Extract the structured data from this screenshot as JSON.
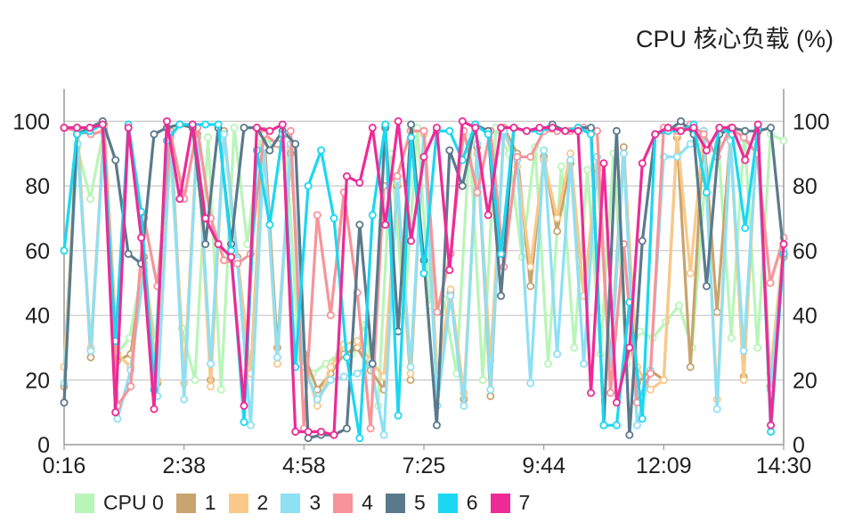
{
  "chart_data": {
    "type": "line",
    "title": "CPU 核心负载 (%)",
    "ylim": [
      0,
      110
    ],
    "y_ticks": [
      0,
      20,
      40,
      60,
      80,
      100
    ],
    "x_tick_labels": [
      "0:16",
      "2:38",
      "4:58",
      "7:25",
      "9:44",
      "12:09",
      "14:30"
    ],
    "grid": "horizontal",
    "legend": "bottom-left",
    "series": [
      {
        "name": "CPU 0",
        "color": "#b9f5b9",
        "values": [
          60,
          92,
          76,
          97,
          28,
          33,
          55,
          32,
          96,
          36,
          20,
          95,
          17,
          98,
          62,
          95,
          93,
          90,
          25,
          22,
          25,
          28,
          28,
          37,
          12,
          90,
          40,
          98,
          43,
          45,
          22,
          95,
          20,
          98,
          90,
          58,
          92,
          25,
          86,
          30,
          85,
          28,
          90,
          25,
          35,
          33,
          38,
          43,
          30,
          82,
          93,
          33,
          97,
          30,
          96,
          94
        ]
      },
      {
        "name": "1",
        "color": "#c8a46e",
        "values": [
          18,
          98,
          27,
          99,
          26,
          28,
          58,
          19,
          97,
          19,
          96,
          20,
          97,
          58,
          22,
          97,
          30,
          90,
          28,
          17,
          22,
          28,
          30,
          23,
          17,
          80,
          20,
          97,
          20,
          47,
          14,
          92,
          15,
          98,
          90,
          49,
          89,
          66,
          87,
          46,
          85,
          25,
          92,
          19,
          23,
          20,
          95,
          24,
          97,
          41,
          95,
          21,
          96,
          18,
          58
        ]
      },
      {
        "name": "2",
        "color": "#f9c98a",
        "values": [
          24,
          96,
          30,
          98,
          28,
          24,
          56,
          20,
          95,
          19,
          95,
          18,
          96,
          57,
          22,
          92,
          25,
          92,
          26,
          12,
          24,
          31,
          32,
          26,
          21,
          81,
          22,
          96,
          21,
          48,
          16,
          90,
          26,
          97,
          86,
          55,
          88,
          70,
          90,
          46,
          86,
          21,
          90,
          24,
          17,
          20,
          96,
          53,
          97,
          14,
          96,
          20,
          97,
          22,
          62
        ]
      },
      {
        "name": "3",
        "color": "#8ee0f4",
        "values": [
          19,
          93,
          29,
          96,
          8,
          23,
          54,
          15,
          95,
          14,
          95,
          25,
          96,
          57,
          6,
          92,
          27,
          93,
          24,
          14,
          20,
          21,
          22,
          25,
          3,
          82,
          24,
          97,
          12,
          46,
          12,
          93,
          17,
          97,
          88,
          19,
          91,
          28,
          88,
          25,
          89,
          23,
          90,
          6,
          23,
          89,
          89,
          93,
          97,
          11,
          94,
          29,
          95,
          17,
          60
        ]
      },
      {
        "name": "4",
        "color": "#f79499",
        "values": [
          98,
          97,
          96,
          97,
          12,
          18,
          70,
          49,
          96,
          76,
          98,
          70,
          57,
          56,
          59,
          96,
          93,
          97,
          5,
          71,
          40,
          78,
          47,
          5,
          80,
          83,
          97,
          97,
          41,
          59,
          97,
          78,
          97,
          55,
          89,
          89,
          97,
          97,
          97,
          98,
          97,
          16,
          62,
          13,
          22,
          98,
          97,
          99,
          96,
          89,
          98,
          95,
          90,
          50,
          64
        ]
      },
      {
        "name": "5",
        "color": "#5a7a8c",
        "values": [
          13,
          96,
          98,
          100,
          88,
          59,
          56,
          96,
          98,
          99,
          98,
          62,
          98,
          62,
          98,
          98,
          91,
          97,
          93,
          2,
          3,
          3,
          5,
          68,
          25,
          98,
          35,
          99,
          57,
          6,
          91,
          80,
          99,
          97,
          46,
          98,
          97,
          97,
          99,
          97,
          98,
          98,
          6,
          97,
          3,
          63,
          96,
          97,
          100,
          96,
          49,
          96,
          98,
          97,
          97,
          98,
          59
        ]
      },
      {
        "name": "6",
        "color": "#1bd7f1",
        "values": [
          60,
          96,
          97,
          99,
          32,
          99,
          72,
          17,
          94,
          99,
          99,
          99,
          99,
          60,
          7,
          91,
          68,
          96,
          24,
          80,
          91,
          70,
          27,
          2,
          71,
          99,
          9,
          95,
          53,
          97,
          97,
          88,
          99,
          96,
          59,
          98,
          97,
          97,
          98,
          97,
          98,
          96,
          6,
          6,
          44,
          8,
          96,
          97,
          97,
          99,
          78,
          98,
          96,
          67,
          98,
          4,
          59
        ]
      },
      {
        "name": "7",
        "color": "#ee2a96",
        "values": [
          98,
          98,
          98,
          99,
          10,
          98,
          64,
          11,
          100,
          76,
          99,
          70,
          62,
          58,
          12,
          98,
          97,
          99,
          4,
          4,
          4,
          3,
          83,
          81,
          98,
          68,
          100,
          63,
          89,
          98,
          54,
          100,
          98,
          71,
          98,
          98,
          97,
          98,
          98,
          97,
          97,
          16,
          87,
          13,
          30,
          87,
          96,
          98,
          97,
          98,
          91,
          98,
          98,
          88,
          99,
          6,
          62
        ]
      }
    ]
  }
}
